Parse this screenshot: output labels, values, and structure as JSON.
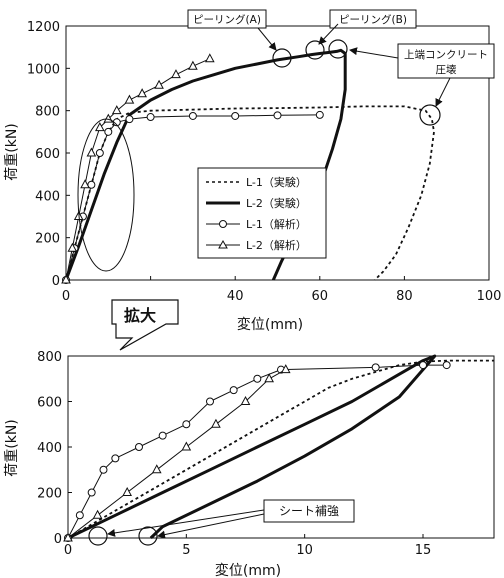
{
  "chart_data": [
    {
      "type": "line",
      "xlabel": "変位(mm)",
      "ylabel": "荷重(kN)",
      "xlim": [
        0,
        100
      ],
      "ylim": [
        0,
        1200
      ],
      "xticks": [
        0,
        20,
        40,
        60,
        80,
        100
      ],
      "xtick_labels": [
        "0",
        "",
        "40",
        "60",
        "80",
        "100"
      ],
      "yticks": [
        0,
        200,
        400,
        600,
        800,
        1000,
        1200
      ],
      "legend_position": "center-right",
      "series": [
        {
          "name": "L-1（実験）",
          "style": "dashed",
          "x": [
            0,
            2,
            4,
            6,
            8,
            10,
            12,
            15,
            20,
            30,
            40,
            50,
            60,
            70,
            80,
            85,
            86.5,
            87,
            86,
            84,
            81,
            78,
            75,
            73
          ],
          "y": [
            0,
            150,
            300,
            450,
            600,
            700,
            760,
            790,
            800,
            805,
            810,
            812,
            815,
            820,
            820,
            800,
            760,
            700,
            550,
            400,
            250,
            120,
            40,
            0
          ]
        },
        {
          "name": "L-2（実験）",
          "style": "thick",
          "x": [
            0,
            3,
            6,
            9,
            12,
            15,
            20,
            25,
            30,
            35,
            40,
            45,
            50,
            55,
            58,
            60,
            62,
            64,
            65,
            66,
            66,
            65,
            63,
            61,
            59,
            57,
            55,
            53,
            51,
            49
          ],
          "y": [
            0,
            160,
            330,
            500,
            650,
            780,
            850,
            900,
            940,
            970,
            1000,
            1020,
            1040,
            1055,
            1065,
            1070,
            1075,
            1080,
            1085,
            1070,
            900,
            760,
            620,
            500,
            400,
            320,
            250,
            170,
            90,
            0
          ]
        },
        {
          "name": "L-1（解析）",
          "style": "circle",
          "x": [
            0,
            2,
            4,
            6,
            8,
            10,
            12,
            15,
            20,
            30,
            40,
            50,
            60
          ],
          "y": [
            0,
            150,
            300,
            450,
            600,
            700,
            745,
            760,
            770,
            775,
            775,
            778,
            780
          ]
        },
        {
          "name": "L-2（解析）",
          "style": "triangle",
          "x": [
            0,
            1.5,
            3,
            4.5,
            6,
            8,
            10,
            12,
            15,
            18,
            22,
            26,
            30,
            34
          ],
          "y": [
            0,
            150,
            300,
            450,
            600,
            720,
            760,
            800,
            850,
            880,
            920,
            970,
            1010,
            1045
          ]
        }
      ],
      "annotations": [
        {
          "text": "ピーリング(A)",
          "x": 61,
          "y": 1070
        },
        {
          "text": "ピーリング(B)",
          "x": 67,
          "y": 1090
        },
        {
          "text": "上端コンクリート",
          "x": 86,
          "y": 810
        },
        {
          "text": "圧壊",
          "x": 86,
          "y": 810
        }
      ]
    },
    {
      "type": "line",
      "xlabel": "変位(mm)",
      "ylabel": "荷重(kN)",
      "xlim": [
        0,
        18
      ],
      "ylim": [
        0,
        800
      ],
      "xticks": [
        0,
        5,
        10,
        15
      ],
      "yticks": [
        0,
        200,
        400,
        600,
        800
      ],
      "series": [
        {
          "name": "L-1（実験）",
          "style": "dashed",
          "x": [
            0,
            1,
            2,
            3,
            4,
            5,
            6,
            7,
            8,
            9,
            10,
            11,
            12,
            13,
            14,
            15,
            16,
            18
          ],
          "y": [
            0,
            60,
            120,
            180,
            240,
            300,
            360,
            420,
            480,
            540,
            600,
            660,
            700,
            730,
            760,
            775,
            780,
            780
          ]
        },
        {
          "name": "L-2（実験）",
          "style": "thick",
          "x": [
            0,
            2,
            4,
            6,
            8,
            10,
            12,
            14,
            15,
            15.5,
            14,
            12,
            10,
            8,
            6,
            4,
            3.5
          ],
          "y": [
            0,
            100,
            200,
            300,
            400,
            500,
            600,
            720,
            780,
            800,
            620,
            480,
            360,
            250,
            150,
            50,
            0
          ]
        },
        {
          "name": "L-1（解析）",
          "style": "circle",
          "x": [
            0,
            0.5,
            1,
            1.5,
            2,
            3,
            4,
            5,
            6,
            7,
            8,
            9,
            13,
            15,
            16
          ],
          "y": [
            0,
            100,
            200,
            300,
            350,
            400,
            450,
            500,
            600,
            650,
            700,
            740,
            750,
            760,
            760
          ]
        },
        {
          "name": "L-2（解析）",
          "style": "triangle",
          "x": [
            0,
            1.25,
            2.5,
            3.75,
            5,
            6.25,
            7.5,
            8.5,
            9.2
          ],
          "y": [
            0,
            100,
            200,
            300,
            400,
            500,
            600,
            700,
            740
          ]
        }
      ],
      "annotations": [
        {
          "text": "シート補強",
          "x": 12.5,
          "y": 100
        }
      ]
    }
  ],
  "enlarge_label": "拡大"
}
